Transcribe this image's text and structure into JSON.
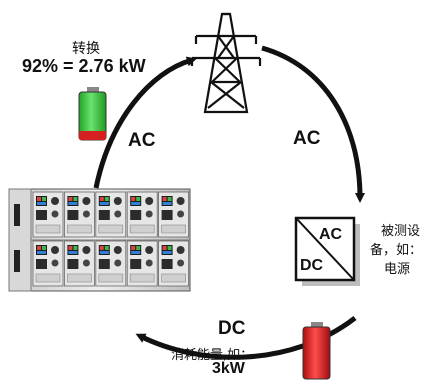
{
  "labels": {
    "conversion_title": "转换",
    "conversion_value": "92% = 2.76 kW",
    "arrow_top_left": "AC",
    "arrow_top_right": "AC",
    "arrow_bottom": "DC",
    "converter_ac": "AC",
    "converter_dc": "DC",
    "dut_line1": "被测设",
    "dut_line2": "备，如：",
    "dut_line3": "电源",
    "consumption_line1": "消耗能量,如：",
    "consumption_line2": "3kW"
  },
  "colors": {
    "arrow": "#111111",
    "battery_green": "#36d13a",
    "battery_red_base": "#d42020",
    "battery_red": "#e0191c",
    "tower": "#111111"
  },
  "icons": {
    "grid": "power-tower-icon",
    "converter": "ac-dc-converter-icon",
    "efficiency": "battery-icon",
    "load": "battery-icon",
    "equipment": "electronic-load-rack-icon"
  }
}
